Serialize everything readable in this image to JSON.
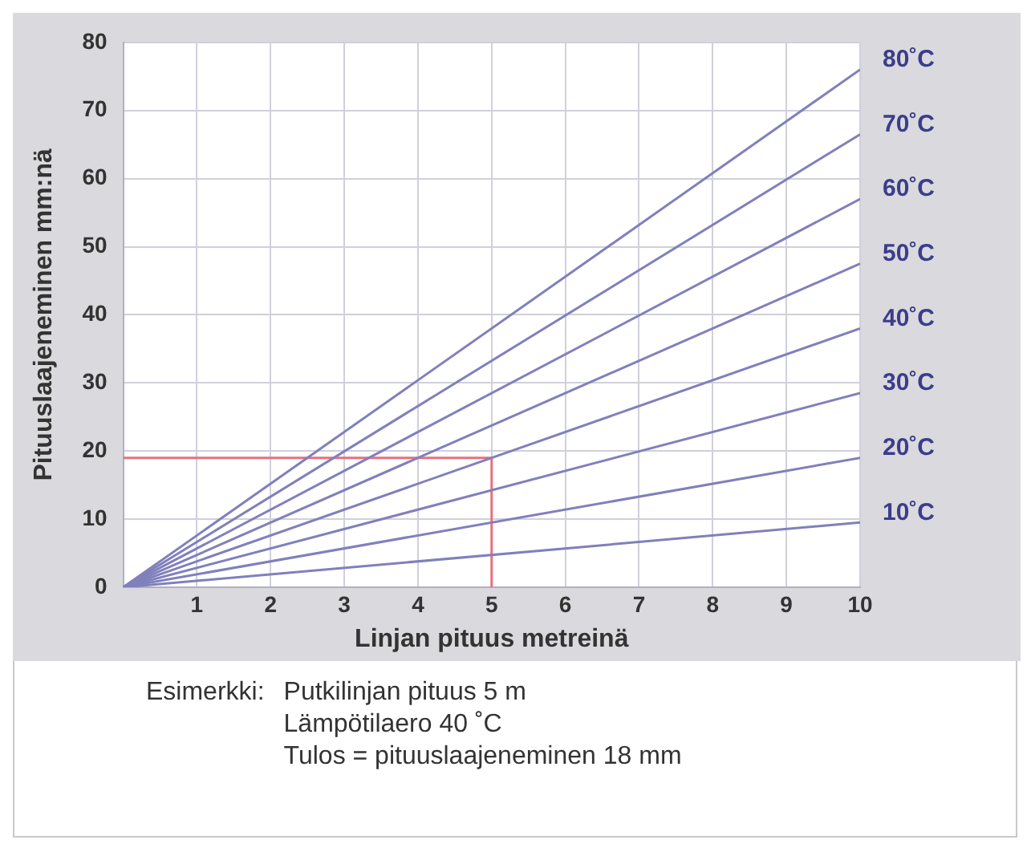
{
  "chart_data": {
    "type": "line",
    "xlabel": "Linjan pituus metreinä",
    "ylabel": "Pituuslaajeneminen mm:nä",
    "xlim": [
      0,
      10
    ],
    "xticks": [
      {
        "value": 0,
        "label": null
      },
      1,
      2,
      3,
      4,
      5,
      6,
      7,
      8,
      9,
      10
    ],
    "ylim": [
      0,
      80
    ],
    "yticks": [
      0,
      10,
      20,
      30,
      40,
      50,
      60,
      70,
      80
    ],
    "grid": true,
    "legend": false,
    "marker": "none",
    "line_style": "solid",
    "series": [
      {
        "name": "80˚C",
        "color": "#8080bc",
        "x": [
          0,
          10
        ],
        "values": [
          0,
          76
        ]
      },
      {
        "name": "70˚C",
        "color": "#8080bc",
        "x": [
          0,
          10
        ],
        "values": [
          0,
          66.5
        ]
      },
      {
        "name": "60˚C",
        "color": "#8080bc",
        "x": [
          0,
          10
        ],
        "values": [
          0,
          57
        ]
      },
      {
        "name": "50˚C",
        "color": "#8080bc",
        "x": [
          0,
          10
        ],
        "values": [
          0,
          47.5
        ]
      },
      {
        "name": "40˚C",
        "color": "#8080bc",
        "x": [
          0,
          10
        ],
        "values": [
          0,
          38
        ]
      },
      {
        "name": "30˚C",
        "color": "#8080bc",
        "x": [
          0,
          10
        ],
        "values": [
          0,
          28.5
        ]
      },
      {
        "name": "20˚C",
        "color": "#8080bc",
        "x": [
          0,
          10
        ],
        "values": [
          0,
          19
        ]
      },
      {
        "name": "10˚C",
        "color": "#8080bc",
        "x": [
          0,
          10
        ],
        "values": [
          0,
          9.5
        ]
      },
      {
        "color": "#e8707c",
        "x": [
          0,
          5,
          5
        ],
        "values": [
          19,
          19,
          0
        ]
      }
    ],
    "annotations": [
      "Esimerkki:",
      "Putkilinjan pituus 5 m",
      "Lämpötilaero 40 ˚C",
      "Tulos = pituuslaajeneminen 18 mm"
    ]
  }
}
